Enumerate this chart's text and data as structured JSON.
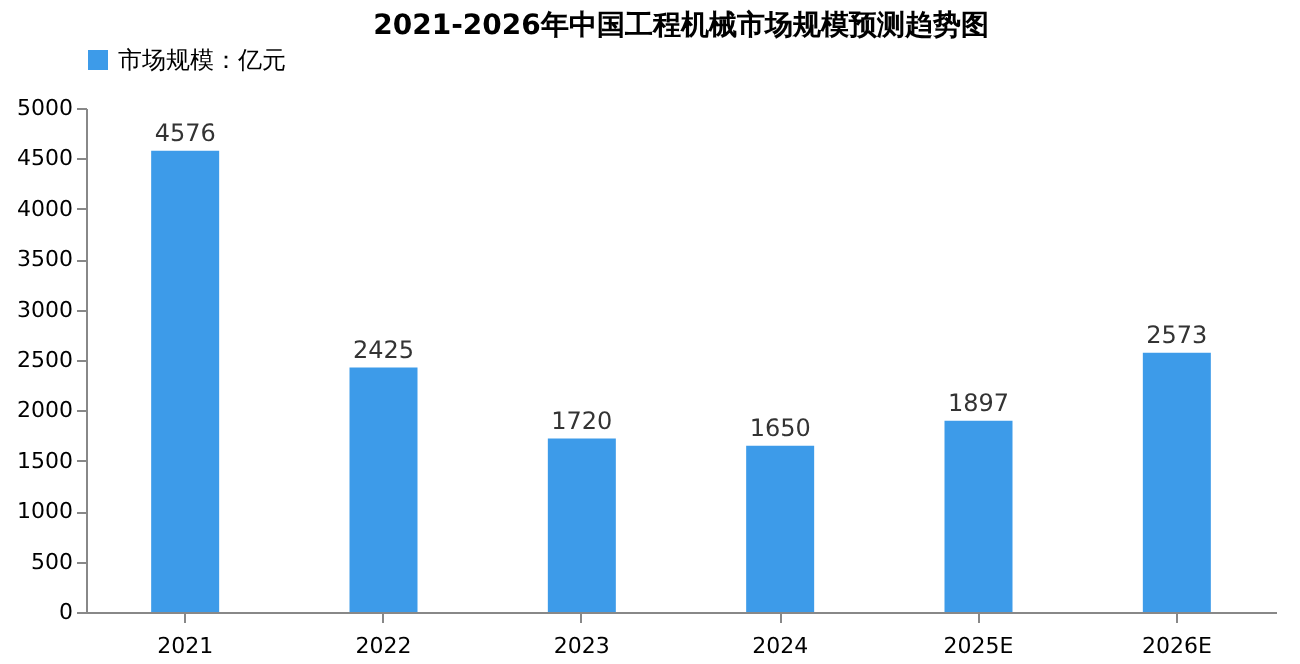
{
  "chart_data": {
    "type": "bar",
    "title": "2021-2026年中国工程机械市场规模预测趋势图",
    "categories": [
      "2021",
      "2022",
      "2023",
      "2024",
      "2025E",
      "2026E"
    ],
    "series": [
      {
        "name": "市场规模：亿元",
        "color": "#3d9be9",
        "values": [
          4576,
          2425,
          1720,
          1650,
          1897,
          2573
        ]
      }
    ],
    "ylim": [
      0,
      5000
    ],
    "yticks": [
      0,
      500,
      1000,
      1500,
      2000,
      2500,
      3000,
      3500,
      4000,
      4500,
      5000
    ],
    "data_labels": true,
    "grid": false,
    "legend": "top"
  }
}
